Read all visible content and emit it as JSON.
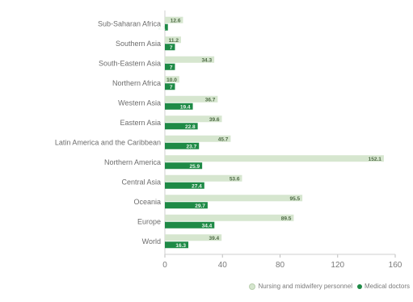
{
  "chart_data": {
    "type": "bar",
    "orientation": "horizontal",
    "title": "",
    "xlabel": "",
    "ylabel": "",
    "xlim": [
      0,
      160
    ],
    "xticks": [
      0,
      40,
      80,
      120,
      160
    ],
    "grid": false,
    "legend_position": "bottom-right",
    "categories": [
      "Sub-Saharan Africa",
      "Southern Asia",
      "South-Eastern Asia",
      "Northern Africa",
      "Western Asia",
      "Eastern Asia",
      "Latin America and the Caribbean",
      "Northern America",
      "Central Asia",
      "Oceania",
      "Europe",
      "World"
    ],
    "series": [
      {
        "name": "Nursing and midwifery personnel",
        "color": "#d6e6cf",
        "values": [
          12.6,
          11.2,
          34.3,
          10.0,
          36.7,
          39.6,
          45.7,
          152.1,
          53.6,
          95.5,
          89.5,
          39.4
        ],
        "labels": [
          "12.6",
          "11.2",
          "34.3",
          "10.0",
          "36.7",
          "39.6",
          "45.7",
          "152.1",
          "53.6",
          "95.5",
          "89.5",
          "39.4"
        ]
      },
      {
        "name": "Medical doctors",
        "color": "#1e8a46",
        "values": [
          2.1,
          7.0,
          7.0,
          7.0,
          19.4,
          22.8,
          23.7,
          25.9,
          27.4,
          29.7,
          34.4,
          16.3
        ],
        "labels": [
          "2.1",
          "7",
          "7",
          "7",
          "19.4",
          "22.8",
          "23.7",
          "25.9",
          "27.4",
          "29.7",
          "34.4",
          "16.3"
        ]
      }
    ]
  }
}
